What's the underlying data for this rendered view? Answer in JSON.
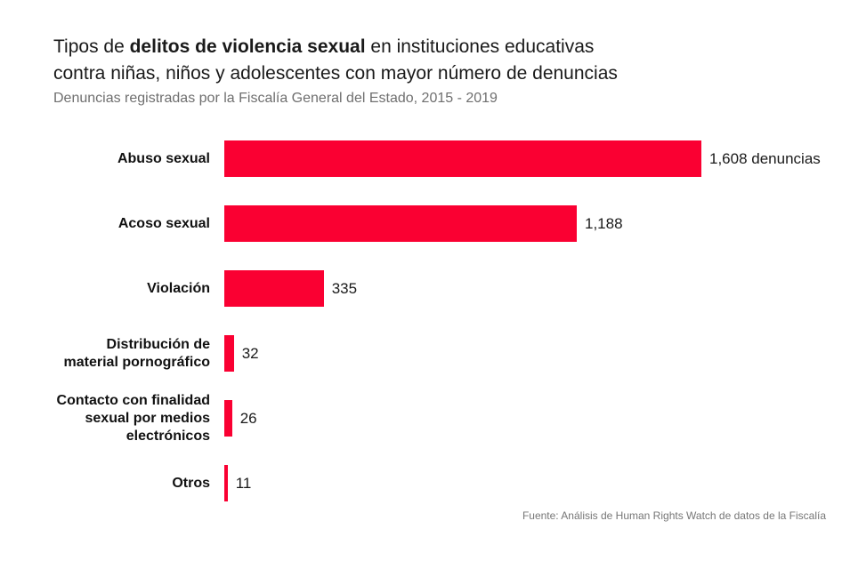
{
  "header": {
    "title_line1_pre": "Tipos de ",
    "title_line1_bold": "delitos de violencia sexual",
    "title_line1_post": " en instituciones educativas",
    "title_line2": "contra niñas, niños y adolescentes con mayor número de denuncias",
    "subtitle": "Denuncias registradas por la Fiscalía General del Estado, 2015 - 2019"
  },
  "chart_data": {
    "type": "bar",
    "orientation": "horizontal",
    "title": "Tipos de delitos de violencia sexual en instituciones educativas contra niñas, niños y adolescentes con mayor número de denuncias",
    "subtitle": "Denuncias registradas por la Fiscalía General del Estado, 2015 - 2019",
    "categories": [
      "Abuso sexual",
      "Acoso sexual",
      "Violación",
      "Distribución de\nmaterial pornográfico",
      "Contacto con finalidad\nsexual por medios\nelectrónicos",
      "Otros"
    ],
    "values": [
      1608,
      1188,
      335,
      32,
      26,
      11
    ],
    "value_labels": [
      "1,608 denuncias",
      "1,188",
      "335",
      "32",
      "26",
      "11"
    ],
    "xlabel": "",
    "ylabel": "",
    "xlim": [
      0,
      1608
    ],
    "grid": false,
    "legend": null,
    "bar_color": "#FA0032",
    "label_color": "#111111",
    "value_color": "#1a1a1a"
  },
  "footer": {
    "source": "Fuente: Análisis de Human Rights Watch de datos de la Fiscalía"
  }
}
